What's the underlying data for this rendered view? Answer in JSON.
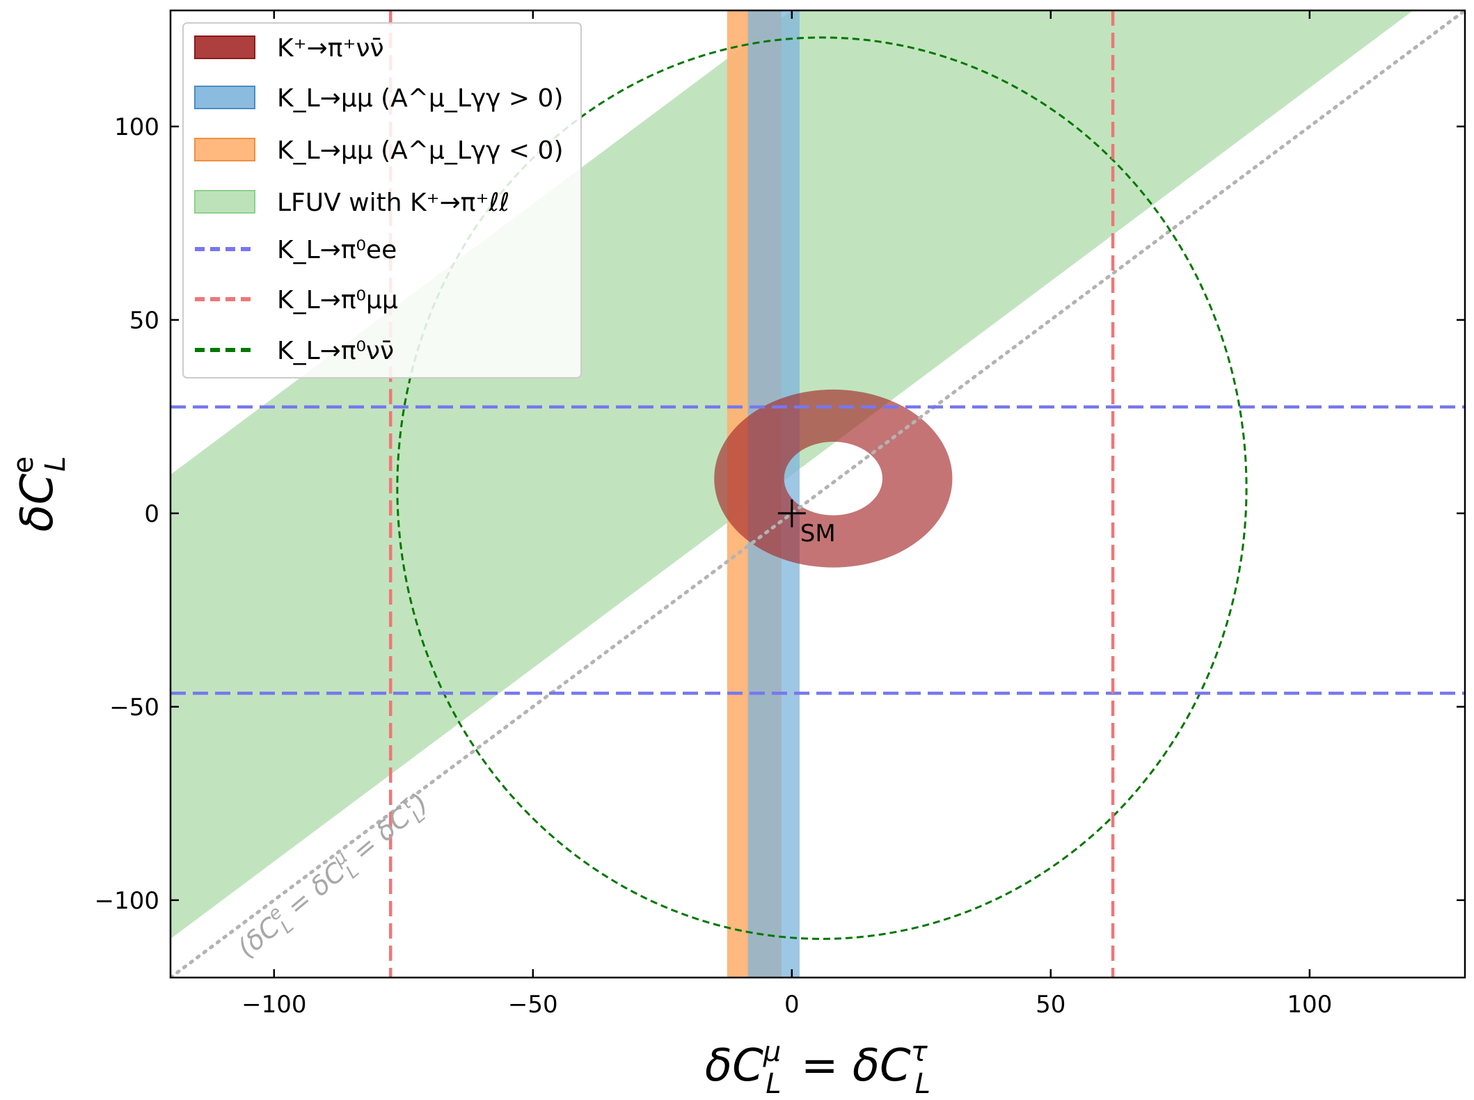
{
  "chart_data": {
    "type": "region",
    "xlim": [
      -120,
      130
    ],
    "ylim": [
      -120,
      130
    ],
    "xticks": [
      -100,
      -50,
      0,
      50,
      100
    ],
    "yticks": [
      -100,
      -50,
      0,
      50,
      100
    ],
    "xtick_labels": [
      "−100",
      "−50",
      "0",
      "50",
      "100"
    ],
    "ytick_labels": [
      "−100",
      "−50",
      "0",
      "50",
      "100"
    ],
    "xlabel": "δC_L^μ = δC_L^τ",
    "ylabel": "δC_L^e",
    "legend_position": "top-left",
    "legend": [
      {
        "label": "K⁺→π⁺νν̄",
        "style": "patch",
        "color": "#a52a2a"
      },
      {
        "label": "K_L→μμ (A^μ_Lγγ > 0)",
        "style": "patch",
        "color": "#7eb4dc"
      },
      {
        "label": "K_L→μμ (A^μ_Lγγ < 0)",
        "style": "patch",
        "color": "#ffb070"
      },
      {
        "label": "LFUV with K⁺→π⁺ℓℓ",
        "style": "patch",
        "color": "#b6dfb3"
      },
      {
        "label": "K_L→π⁰ee",
        "style": "dashed",
        "color": "#7777ee"
      },
      {
        "label": "K_L→π⁰μμ",
        "style": "dashed",
        "color": "#ee7777"
      },
      {
        "label": "K_L→π⁰νν̄",
        "style": "dashed",
        "color": "#007700"
      }
    ],
    "regions": {
      "kpinunu_ring": {
        "center": [
          8,
          9
        ],
        "r_outer": 23,
        "r_inner": 9.5,
        "color": "#a52a2a"
      },
      "klmumu_pos_band": {
        "x": [
          -8.5,
          1.5
        ],
        "color": "#7eb4dc"
      },
      "klmumu_neg_band": {
        "x": [
          -12.5,
          -2
        ],
        "color": "#ffb070"
      },
      "lfuv_band": {
        "slope": 1,
        "intercept_upper": 130,
        "intercept_lower": 10,
        "color": "#b6dfb3"
      }
    },
    "lines": {
      "klpi0ee_y": [
        27.5,
        -46.5
      ],
      "klpi0mumu_x": [
        -77.5,
        62
      ],
      "klpi0nunu_ellipse": {
        "center": [
          5.8,
          6.5
        ],
        "rx": 82,
        "ry": 116.5
      },
      "diagonal": {
        "slope": 1,
        "intercept": 0
      }
    },
    "point": {
      "label": "SM",
      "x": 0,
      "y": 0
    },
    "annotation": "(δC_L^e = δC_L^μ = δC_L^τ)"
  },
  "colors": {
    "ring": "#a52a2a",
    "blue_band": "#7eb4dc",
    "orange_band": "#ffb070",
    "green_band": "#b6dfb3",
    "blue_dash": "#7777ee",
    "red_dash": "#ee7777",
    "green_dash": "#007700",
    "diagonal": "#b3b3b3"
  }
}
